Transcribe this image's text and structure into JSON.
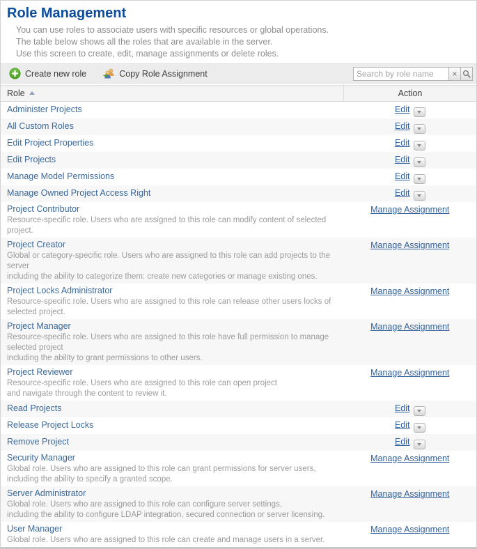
{
  "page": {
    "title": "Role Management",
    "intro_lines": [
      "You can use roles to associate users with specific resources or global operations.",
      "The table below shows all the roles that are available in the server.",
      "Use this screen to create, edit, manage assignments or delete roles."
    ]
  },
  "toolbar": {
    "create_label": "Create new role",
    "copy_label": "Copy Role Assignment",
    "search": {
      "placeholder": "Search by role name",
      "value": "",
      "clear_glyph": "×"
    }
  },
  "icons": {
    "create": "plus-circle-icon",
    "copy": "copy-role-users-icon",
    "clear": "clear-x-icon",
    "search": "magnifier-icon",
    "sort": "sort-ascending-icon",
    "menu": "chevron-down-icon"
  },
  "colors": {
    "title_blue": "#0d4d9d",
    "link_blue": "#31619c",
    "role_link_blue": "#3a699c",
    "desc_gray": "#9b9b9b",
    "toolbar_bg": "#ececec",
    "header_bg": "#f4f4f4",
    "stripe_bg": "#f7f7f7",
    "create_icon_green": "#55ad2c"
  },
  "table": {
    "columns": {
      "role": "Role",
      "action": "Action"
    },
    "sort": {
      "column": "Role",
      "direction": "ascending"
    },
    "action_edit_label": "Edit",
    "action_manage_label": "Manage Assignment",
    "rows": [
      {
        "name": "Administer Projects",
        "desc_lines": [],
        "action": "Edit",
        "has_menu": true
      },
      {
        "name": "All Custom Roles",
        "desc_lines": [],
        "action": "Edit",
        "has_menu": true
      },
      {
        "name": "Edit Project Properties",
        "desc_lines": [],
        "action": "Edit",
        "has_menu": true
      },
      {
        "name": "Edit Projects",
        "desc_lines": [],
        "action": "Edit",
        "has_menu": true
      },
      {
        "name": "Manage Model Permissions",
        "desc_lines": [],
        "action": "Edit",
        "has_menu": true
      },
      {
        "name": "Manage Owned Project Access Right",
        "desc_lines": [],
        "action": "Edit",
        "has_menu": true
      },
      {
        "name": "Project Contributor",
        "desc_lines": [
          "Resource-specific role. Users who are assigned to this role can modify content of selected project."
        ],
        "action": "Manage Assignment",
        "has_menu": false
      },
      {
        "name": "Project Creator",
        "desc_lines": [
          "Global or category-specific role. Users who are assigned to this role can add projects to the server",
          "including the ability to categorize them: create new categories or manage existing ones."
        ],
        "action": "Manage Assignment",
        "has_menu": false
      },
      {
        "name": "Project Locks Administrator",
        "desc_lines": [
          "Resource-specific role. Users who are assigned to this role can release other users locks of selected project."
        ],
        "action": "Manage Assignment",
        "has_menu": false
      },
      {
        "name": "Project Manager",
        "desc_lines": [
          "Resource-specific role. Users who are assigned to this role have full permission to manage selected project",
          "including the ability to grant permissions to other users."
        ],
        "action": "Manage Assignment",
        "has_menu": false
      },
      {
        "name": "Project Reviewer",
        "desc_lines": [
          "Resource-specific role. Users who are assigned to this role can open project",
          "and navigate through the content to review it."
        ],
        "action": "Manage Assignment",
        "has_menu": false
      },
      {
        "name": "Read Projects",
        "desc_lines": [],
        "action": "Edit",
        "has_menu": true
      },
      {
        "name": "Release Project Locks",
        "desc_lines": [],
        "action": "Edit",
        "has_menu": true
      },
      {
        "name": "Remove Project",
        "desc_lines": [],
        "action": "Edit",
        "has_menu": true
      },
      {
        "name": "Security Manager",
        "desc_lines": [
          "Global role. Users who are assigned to this role can grant permissions for server users,",
          "including the ability to specify a granted scope."
        ],
        "action": "Manage Assignment",
        "has_menu": false
      },
      {
        "name": "Server Administrator",
        "desc_lines": [
          "Global role. Users who are assigned to this role can configure server settings,",
          "including the ability to configure LDAP integration, secured connection or server licensing."
        ],
        "action": "Manage Assignment",
        "has_menu": false
      },
      {
        "name": "User Manager",
        "desc_lines": [
          "Global role. Users who are assigned to this role can create and manage users in a server."
        ],
        "action": "Manage Assignment",
        "has_menu": false
      }
    ]
  }
}
